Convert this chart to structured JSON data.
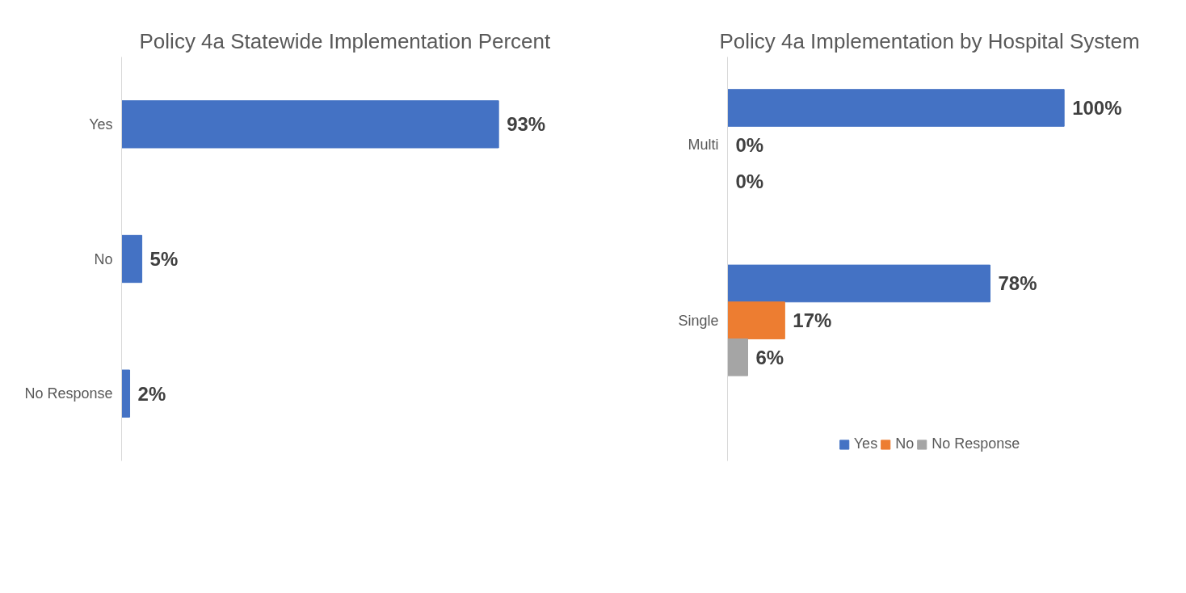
{
  "chart_data": [
    {
      "type": "bar",
      "orientation": "horizontal",
      "title": "Policy 4a Statewide  Implementation Percent",
      "categories": [
        "Yes",
        "No",
        "No Response"
      ],
      "values": [
        93,
        5,
        2
      ],
      "value_labels": [
        "93%",
        "5%",
        "2%"
      ],
      "color": "#4472c4",
      "tick_labels": "y",
      "grid": false
    },
    {
      "type": "bar",
      "orientation": "horizontal",
      "title": "Policy 4a Implementation by Hospital System",
      "categories": [
        "Multi",
        "Single"
      ],
      "series": [
        {
          "name": "Yes",
          "color": "#4472c4",
          "values": [
            100,
            78
          ],
          "value_labels": [
            "100%",
            "78%"
          ]
        },
        {
          "name": "No",
          "color": "#ed7d31",
          "values": [
            0,
            17
          ],
          "value_labels": [
            "0%",
            "17%"
          ]
        },
        {
          "name": "No Response",
          "color": "#a5a5a5",
          "values": [
            0,
            6
          ],
          "value_labels": [
            "0%",
            "6%"
          ]
        }
      ],
      "tick_labels": "y",
      "grid": false,
      "legend": "bottom"
    }
  ]
}
